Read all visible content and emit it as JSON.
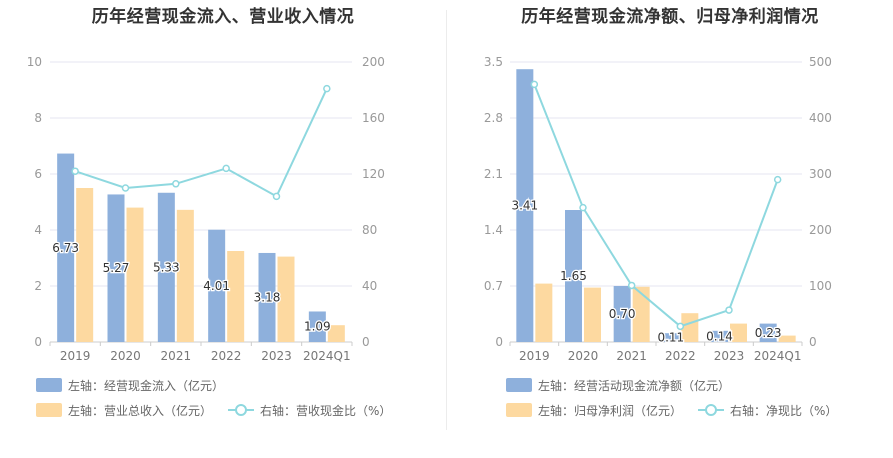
{
  "charts": [
    {
      "title": "历年经营现金流入、营业收入情况",
      "legend": [
        {
          "label": "左轴：经营现金流入（亿元）",
          "color": "#8eb0dc",
          "kind": "bar"
        },
        {
          "label": "左轴：营业总收入（亿元）",
          "color": "#fdd9a0",
          "kind": "bar"
        },
        {
          "label": "右轴：营收现金比（%）",
          "color": "#8ed8df",
          "kind": "line"
        }
      ]
    },
    {
      "title": "历年经营现金流净额、归母净利润情况",
      "legend": [
        {
          "label": "左轴：经营活动现金流净额（亿元）",
          "color": "#8eb0dc",
          "kind": "bar"
        },
        {
          "label": "左轴：归母净利润（亿元）",
          "color": "#fdd9a0",
          "kind": "bar"
        },
        {
          "label": "右轴：净现比（%）",
          "color": "#8ed8df",
          "kind": "line"
        }
      ]
    }
  ],
  "chart_data": [
    {
      "type": "bar",
      "title": "历年经营现金流入、营业收入情况",
      "categories": [
        "2019",
        "2020",
        "2021",
        "2022",
        "2023",
        "2024Q1"
      ],
      "y_left": {
        "min": 0,
        "max": 10,
        "ticks": [
          "0",
          "2",
          "4",
          "6",
          "8",
          "10"
        ]
      },
      "y_right": {
        "min": 0,
        "max": 200,
        "ticks": [
          "0",
          "40",
          "80",
          "120",
          "160",
          "200"
        ]
      },
      "series": [
        {
          "name": "经营现金流入（亿元）",
          "axis": "left",
          "type": "bar",
          "color": "#8eb0dc",
          "values": [
            6.73,
            5.27,
            5.33,
            4.01,
            3.18,
            1.09
          ],
          "labels": [
            "6.73",
            "5.27",
            "5.33",
            "4.01",
            "3.18",
            "1.09"
          ]
        },
        {
          "name": "营业总收入（亿元）",
          "axis": "left",
          "type": "bar",
          "color": "#fdd9a0",
          "values": [
            5.5,
            4.8,
            4.72,
            3.25,
            3.05,
            0.6
          ]
        },
        {
          "name": "营收现金比（%）",
          "axis": "right",
          "type": "line",
          "color": "#8ed8df",
          "values": [
            122,
            110,
            113,
            124,
            104,
            181
          ]
        }
      ],
      "grid": true,
      "legend_position": "bottom"
    },
    {
      "type": "bar",
      "title": "历年经营现金流净额、归母净利润情况",
      "categories": [
        "2019",
        "2020",
        "2021",
        "2022",
        "2023",
        "2024Q1"
      ],
      "y_left": {
        "min": 0,
        "max": 3.5,
        "ticks": [
          "0",
          "0.7",
          "1.4",
          "2.1",
          "2.8",
          "3.5"
        ]
      },
      "y_right": {
        "min": 0,
        "max": 500,
        "ticks": [
          "0",
          "100",
          "200",
          "300",
          "400",
          "500"
        ]
      },
      "series": [
        {
          "name": "经营活动现金流净额（亿元）",
          "axis": "left",
          "type": "bar",
          "color": "#8eb0dc",
          "values": [
            3.41,
            1.65,
            0.7,
            0.11,
            0.14,
            0.23
          ],
          "labels": [
            "3.41",
            "1.65",
            "0.70",
            "0.11",
            "0.14",
            "0.23"
          ]
        },
        {
          "name": "归母净利润（亿元）",
          "axis": "left",
          "type": "bar",
          "color": "#fdd9a0",
          "values": [
            0.73,
            0.68,
            0.69,
            0.36,
            0.23,
            0.08
          ]
        },
        {
          "name": "净现比（%）",
          "axis": "right",
          "type": "line",
          "color": "#8ed8df",
          "values": [
            460,
            240,
            101,
            28,
            57,
            290
          ]
        }
      ],
      "grid": true,
      "legend_position": "bottom"
    }
  ]
}
